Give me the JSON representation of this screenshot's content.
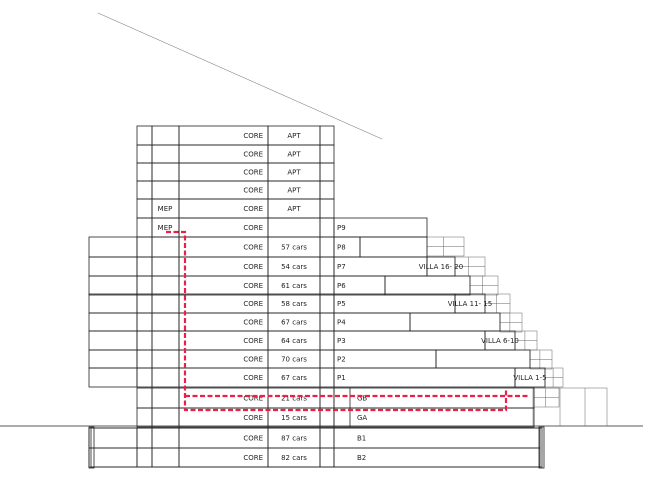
{
  "colors": {
    "apartment": "#fbf8cf",
    "core": "#c4ddb3",
    "parking": "#ebe1e5",
    "mep": "#e8204a",
    "cyan": "#bce4e8",
    "villa": "#fdfbc9",
    "shaft": "#d6d6d6",
    "route": "#e8204a"
  },
  "floors": [
    {
      "core": "CORE",
      "main": "APT",
      "right": "",
      "villa": "",
      "mep": "",
      "kind": "apt"
    },
    {
      "core": "CORE",
      "main": "APT",
      "right": "",
      "villa": "",
      "mep": "",
      "kind": "apt"
    },
    {
      "core": "CORE",
      "main": "APT",
      "right": "",
      "villa": "",
      "mep": "",
      "kind": "apt"
    },
    {
      "core": "CORE",
      "main": "APT",
      "right": "",
      "villa": "",
      "mep": "",
      "kind": "apt"
    },
    {
      "core": "CORE",
      "main": "APT",
      "right": "",
      "villa": "",
      "mep": "MEP",
      "kind": "apt"
    },
    {
      "core": "CORE",
      "main": "",
      "right": "P9",
      "villa": "",
      "mep": "MEP",
      "kind": "p9"
    },
    {
      "core": "CORE",
      "main": "57 cars",
      "right": "P8",
      "villa": "",
      "mep": "",
      "kind": "park"
    },
    {
      "core": "CORE",
      "main": "54 cars",
      "right": "P7",
      "villa": "VILLA 16- 20",
      "mep": "",
      "kind": "park"
    },
    {
      "core": "CORE",
      "main": "61 cars",
      "right": "P6",
      "villa": "",
      "mep": "",
      "kind": "park"
    },
    {
      "core": "CORE",
      "main": "58 cars",
      "right": "P5",
      "villa": "VILLA 11- 15",
      "mep": "",
      "kind": "park"
    },
    {
      "core": "CORE",
      "main": "67 cars",
      "right": "P4",
      "villa": "",
      "mep": "",
      "kind": "park"
    },
    {
      "core": "CORE",
      "main": "64 cars",
      "right": "P3",
      "villa": "VILLA 6-10",
      "mep": "",
      "kind": "park"
    },
    {
      "core": "CORE",
      "main": "70 cars",
      "right": "P2",
      "villa": "",
      "mep": "",
      "kind": "park"
    },
    {
      "core": "CORE",
      "main": "67 cars",
      "right": "P1",
      "villa": "VILLA 1-5",
      "mep": "",
      "kind": "park"
    },
    {
      "core": "CORE",
      "main": "21 cars",
      "right": "GB",
      "villa": "",
      "mep": "",
      "kind": "ground"
    },
    {
      "core": "CORE",
      "main": "15 cars",
      "right": "GA",
      "villa": "",
      "mep": "",
      "kind": "ground"
    },
    {
      "core": "CORE",
      "main": "87 cars",
      "right": "B1",
      "villa": "",
      "mep": "",
      "kind": "base"
    },
    {
      "core": "CORE",
      "main": "82 cars",
      "right": "B2",
      "villa": "",
      "mep": "",
      "kind": "base"
    }
  ]
}
